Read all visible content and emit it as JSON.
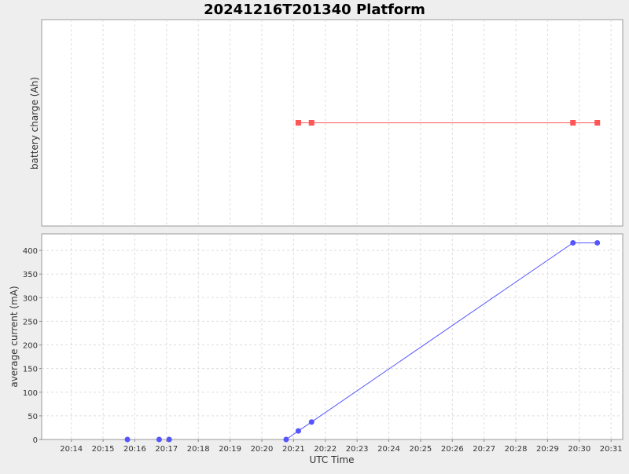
{
  "chart_data": {
    "type": "line",
    "title": "20241216T201340 Platform",
    "xlabel": "UTC Time",
    "x_ticks": [
      "20:14",
      "20:15",
      "20:16",
      "20:17",
      "20:18",
      "20:19",
      "20:20",
      "20:21",
      "20:22",
      "20:23",
      "20:24",
      "20:25",
      "20:26",
      "20:27",
      "20:28",
      "20:29",
      "20:30",
      "20:31"
    ],
    "xlim": [
      "20:13:04",
      "20:31:22"
    ],
    "grid": true,
    "subplots": [
      {
        "name": "top",
        "ylabel": "battery charge (Ah)",
        "y_ticks": [],
        "series": [
          {
            "color": "#ff5555",
            "marker": "square",
            "points": [
              {
                "x": "20:21:09",
                "y": 0
              },
              {
                "x": "20:21:34",
                "y": 0
              },
              {
                "x": "20:29:48",
                "y": 0
              },
              {
                "x": "20:30:34",
                "y": 0
              }
            ]
          }
        ]
      },
      {
        "name": "bottom",
        "ylabel": "average current (mA)",
        "ylim": [
          0,
          435
        ],
        "y_ticks": [
          0,
          50,
          100,
          150,
          200,
          250,
          300,
          350,
          400
        ],
        "series": [
          {
            "color": "#5555ff",
            "marker": "circle",
            "points": [
              {
                "x": "20:15:46",
                "y": 0
              },
              {
                "x": "20:16:46",
                "y": 0
              },
              {
                "x": "20:17:05",
                "y": 0
              },
              {
                "x": "20:20:46",
                "y": 0
              },
              {
                "x": "20:21:09",
                "y": 18
              },
              {
                "x": "20:21:34",
                "y": 37
              },
              {
                "x": "20:29:48",
                "y": 416
              },
              {
                "x": "20:30:34",
                "y": 416
              }
            ]
          }
        ]
      }
    ]
  }
}
